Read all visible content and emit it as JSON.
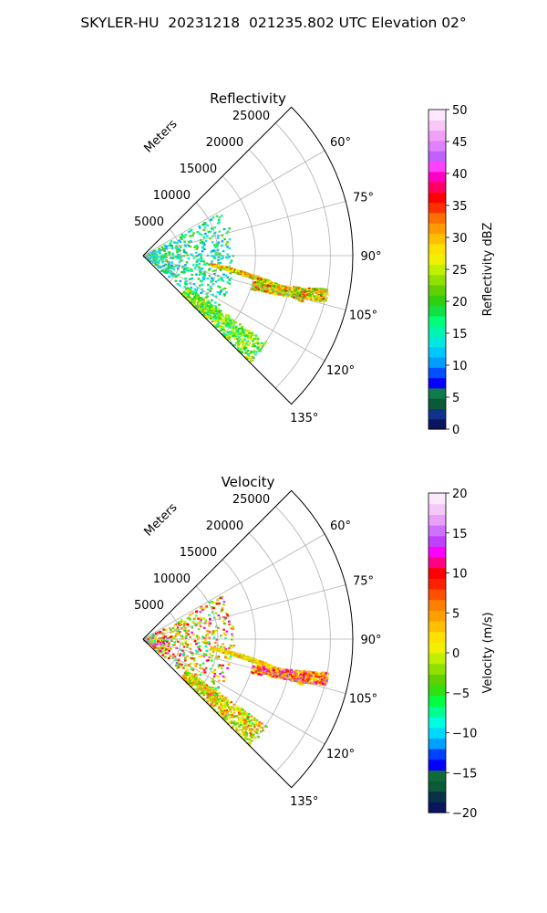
{
  "figure": {
    "suptitle": "SKYLER-HU  20231218  021235.802 UTC Elevation 02°"
  },
  "chart_data": [
    {
      "type": "polar-sector",
      "title": "Reflectivity",
      "radial_label": "Meters",
      "r_ticks": [
        "5000",
        "10000",
        "15000",
        "20000",
        "25000"
      ],
      "r_max_m": 28000,
      "theta_ticks": [
        "60°",
        "75°",
        "90°",
        "105°",
        "120°",
        "135°"
      ],
      "theta_range_deg": [
        45,
        135
      ],
      "colorbar": {
        "label": "Reflectivity dBZ",
        "range": [
          0,
          50
        ],
        "ticks": [
          "0",
          "5",
          "10",
          "15",
          "20",
          "25",
          "30",
          "35",
          "40",
          "45",
          "50"
        ],
        "colors": [
          "#0a1560",
          "#10328a",
          "#0a5a38",
          "#0f7a4a",
          "#0000ff",
          "#0050ff",
          "#009dff",
          "#00c8ff",
          "#00e8e0",
          "#00f5b0",
          "#00ff78",
          "#10e040",
          "#30d010",
          "#60d000",
          "#90e000",
          "#c0f000",
          "#f0f000",
          "#ffe000",
          "#ffc000",
          "#ff9a00",
          "#ff7000",
          "#ff3000",
          "#ff0000",
          "#ff0060",
          "#ff00c0",
          "#ff40ff",
          "#c060ff",
          "#e080ff",
          "#f0a0f8",
          "#f8c8f8",
          "#fde8fd"
        ]
      },
      "echoes": [
        {
          "region": "near-field clutter",
          "range_m": [
            0,
            12000
          ],
          "azimuth_deg": [
            60,
            130
          ],
          "dbz": [
            10,
            22
          ]
        },
        {
          "region": "radial line",
          "range_m": [
            9000,
            22000
          ],
          "azimuth_deg": [
            88,
            110
          ],
          "dbz": [
            20,
            36
          ]
        },
        {
          "region": "far line",
          "range_m": [
            15000,
            25000
          ],
          "azimuth_deg": [
            100,
            122
          ],
          "dbz": [
            18,
            36
          ]
        },
        {
          "region": "southeast streak",
          "range_m": [
            7000,
            20000
          ],
          "azimuth_deg": [
            125,
            135
          ],
          "dbz": [
            15,
            28
          ]
        }
      ]
    },
    {
      "type": "polar-sector",
      "title": "Velocity",
      "radial_label": "Meters",
      "r_ticks": [
        "5000",
        "10000",
        "15000",
        "20000",
        "25000"
      ],
      "r_max_m": 28000,
      "theta_ticks": [
        "60°",
        "75°",
        "90°",
        "105°",
        "120°",
        "135°"
      ],
      "theta_range_deg": [
        45,
        135
      ],
      "colorbar": {
        "label": "Velocity (m/s)",
        "range": [
          -20,
          20
        ],
        "ticks": [
          "−20",
          "−15",
          "−10",
          "−5",
          "0",
          "5",
          "10",
          "15",
          "20"
        ],
        "colors": [
          "#0a1560",
          "#083048",
          "#0a5a38",
          "#106a3a",
          "#0000ff",
          "#0040ff",
          "#00a0ff",
          "#00d8ff",
          "#00ffe0",
          "#00ff90",
          "#00ff40",
          "#30e010",
          "#60d000",
          "#90e000",
          "#c0f000",
          "#f0f000",
          "#ffe000",
          "#ffc000",
          "#ffa000",
          "#ff8000",
          "#ff5000",
          "#ff2000",
          "#ff0000",
          "#ff0080",
          "#ff00ff",
          "#c040ff",
          "#d070ff",
          "#e8a0f8",
          "#f4c8f8",
          "#fde8fd"
        ]
      },
      "echoes": [
        {
          "region": "near-field clutter",
          "range_m": [
            0,
            12000
          ],
          "azimuth_deg": [
            60,
            130
          ],
          "velocity_ms": [
            -8,
            14
          ]
        },
        {
          "region": "radial line",
          "range_m": [
            9000,
            22000
          ],
          "azimuth_deg": [
            88,
            110
          ],
          "velocity_ms": [
            -2,
            6
          ]
        },
        {
          "region": "far line",
          "range_m": [
            15000,
            25000
          ],
          "azimuth_deg": [
            100,
            122
          ],
          "velocity_ms": [
            0,
            15
          ]
        },
        {
          "region": "southeast streak",
          "range_m": [
            7000,
            20000
          ],
          "azimuth_deg": [
            125,
            135
          ],
          "velocity_ms": [
            -6,
            8
          ]
        }
      ]
    }
  ]
}
